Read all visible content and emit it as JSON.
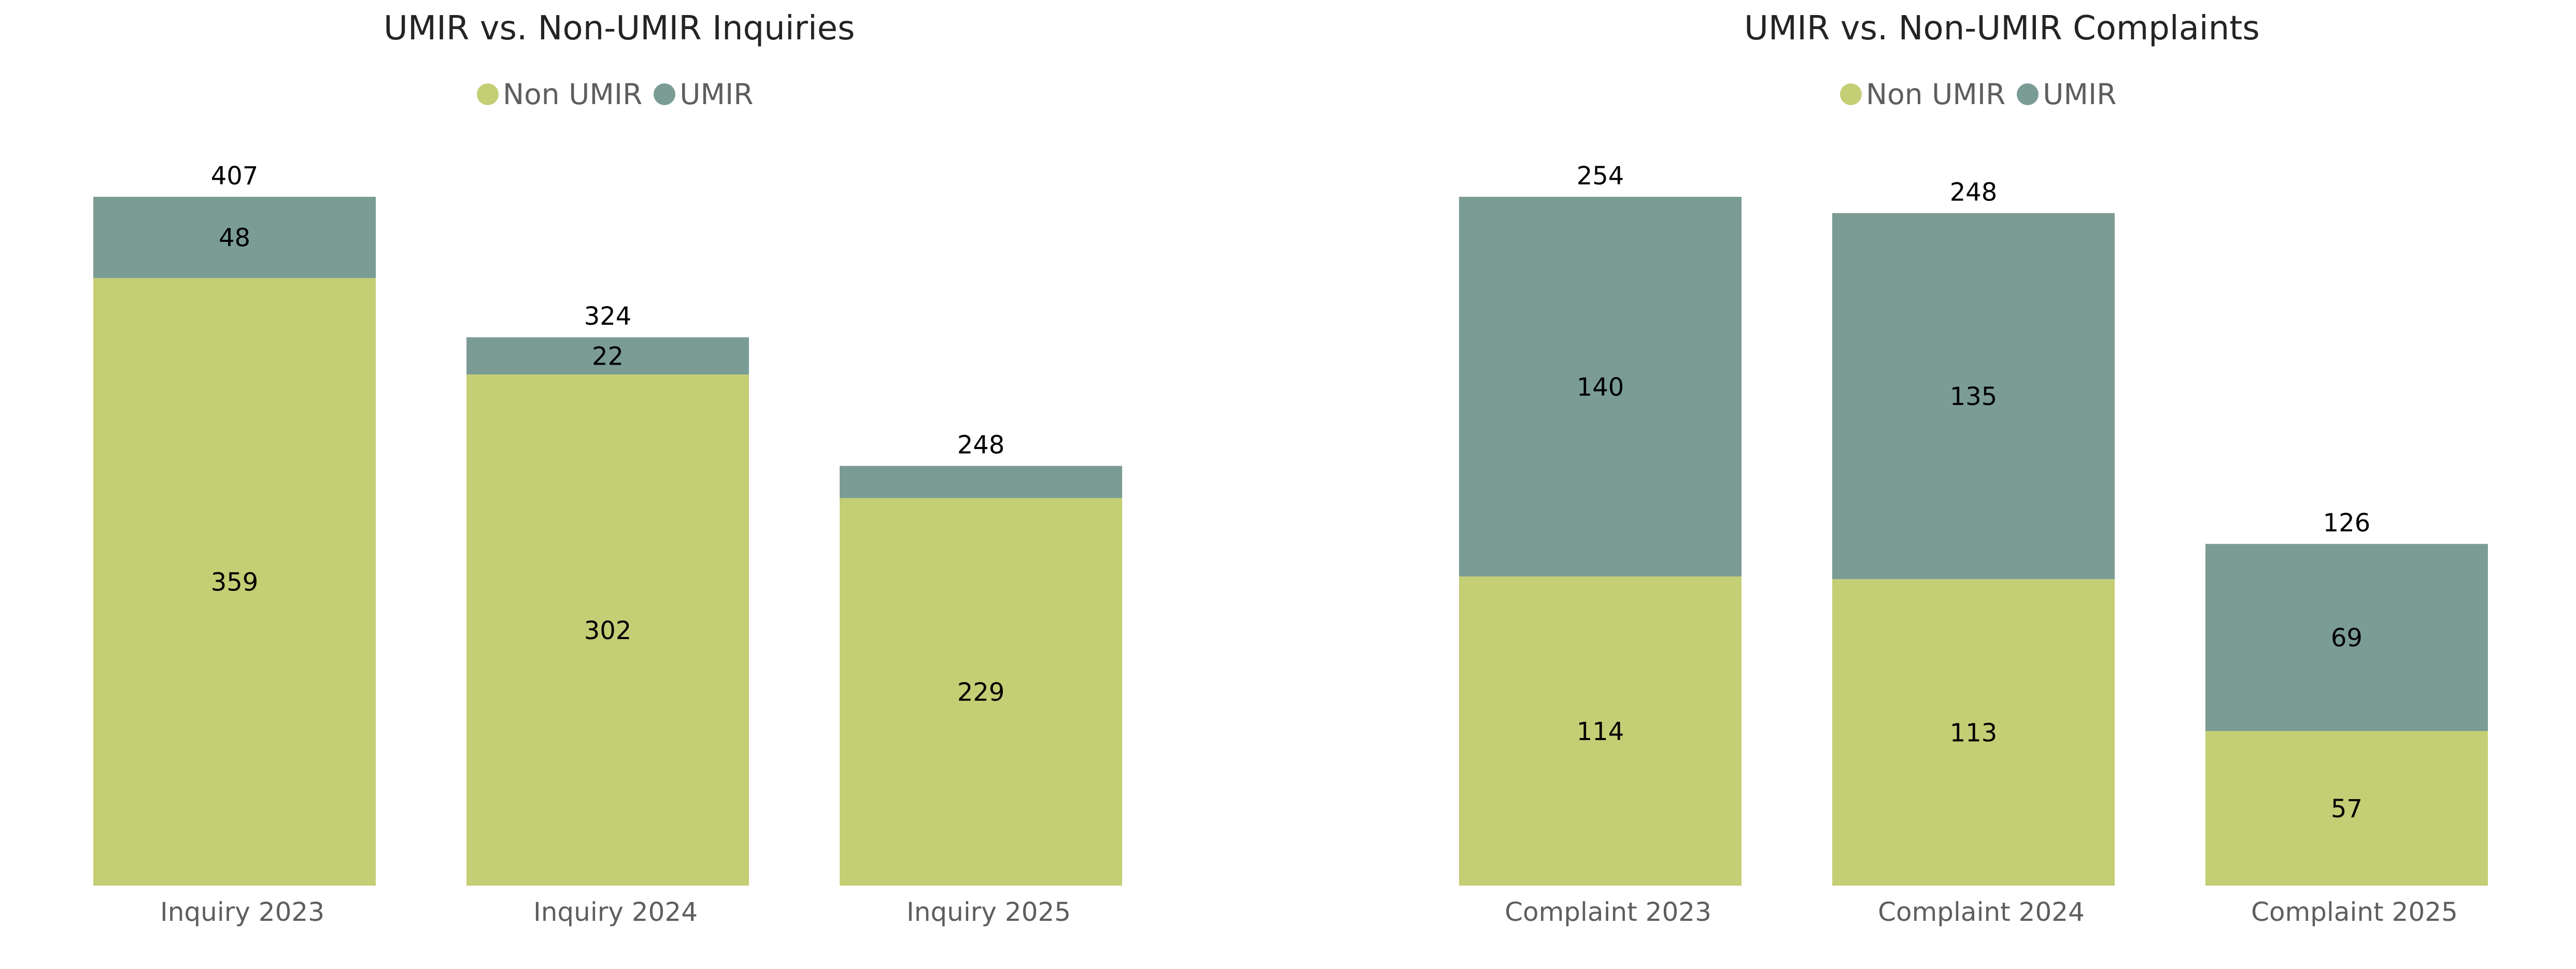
{
  "colors": {
    "non_umir": "#c4ce74",
    "umir": "#7a9c95",
    "label": "#000000",
    "axis_text": "#605e5c",
    "title_text": "#252423"
  },
  "chart_data": [
    {
      "type": "bar",
      "stacked": true,
      "title": "UMIR vs. Non-UMIR Inquiries",
      "legend_position": "top-center",
      "legend": [
        "Non UMIR",
        "UMIR"
      ],
      "categories": [
        "Inquiry 2023",
        "Inquiry 2024",
        "Inquiry 2025"
      ],
      "series": [
        {
          "name": "Non UMIR",
          "values": [
            359,
            302,
            229
          ],
          "labels": [
            "359",
            "302",
            "229"
          ]
        },
        {
          "name": "UMIR",
          "values": [
            48,
            22,
            19
          ],
          "labels": [
            "48",
            "22",
            ""
          ]
        }
      ],
      "totals": [
        "407",
        "324",
        "248"
      ],
      "ylim": [
        0,
        407
      ],
      "grid": false,
      "xlabel": "",
      "ylabel": ""
    },
    {
      "type": "bar",
      "stacked": true,
      "title": "UMIR vs. Non-UMIR Complaints",
      "legend_position": "top-center",
      "legend": [
        "Non UMIR",
        "UMIR"
      ],
      "categories": [
        "Complaint 2023",
        "Complaint 2024",
        "Complaint 2025"
      ],
      "series": [
        {
          "name": "Non UMIR",
          "values": [
            114,
            113,
            57
          ],
          "labels": [
            "114",
            "113",
            "57"
          ]
        },
        {
          "name": "UMIR",
          "values": [
            140,
            135,
            69
          ],
          "labels": [
            "140",
            "135",
            "69"
          ]
        }
      ],
      "totals": [
        "254",
        "248",
        "126"
      ],
      "ylim": [
        0,
        254
      ],
      "grid": false,
      "xlabel": "",
      "ylabel": ""
    }
  ]
}
